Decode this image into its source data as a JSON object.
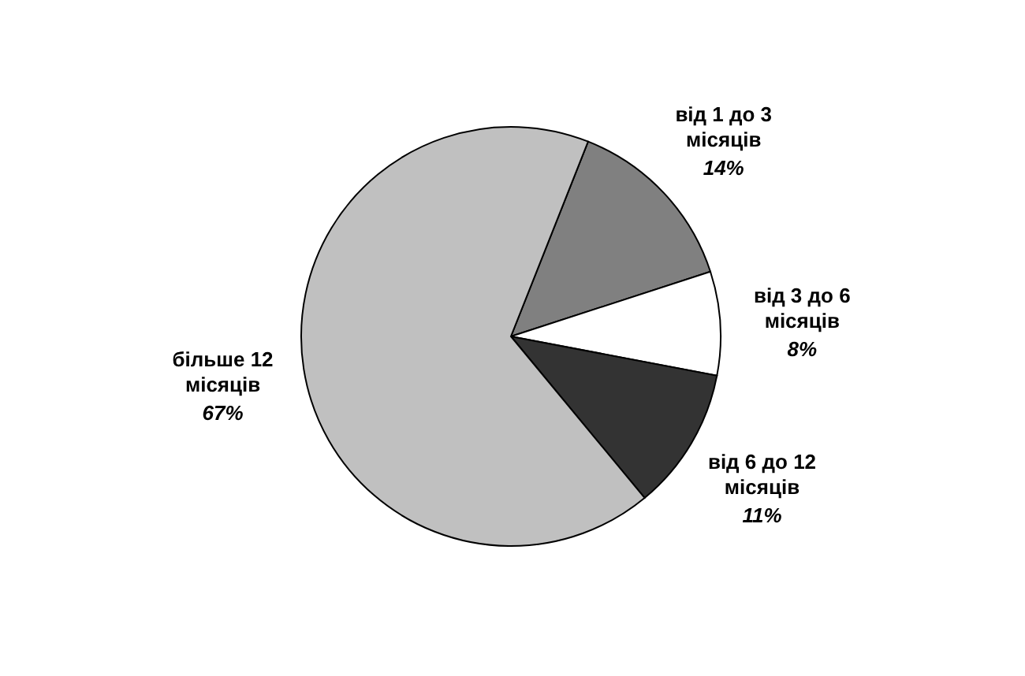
{
  "chart_data": {
    "type": "pie",
    "categories": [
      "від 1 до 3 місяців",
      "від 3 до 6 місяців",
      "від 6 до 12 місяців",
      "більше 12 місяців"
    ],
    "values": [
      14,
      8,
      11,
      67
    ],
    "value_labels": [
      "14%",
      "8%",
      "11%",
      "67%"
    ],
    "colors": [
      "#808080",
      "#ffffff",
      "#333333",
      "#c0c0c0"
    ],
    "legend": false
  }
}
